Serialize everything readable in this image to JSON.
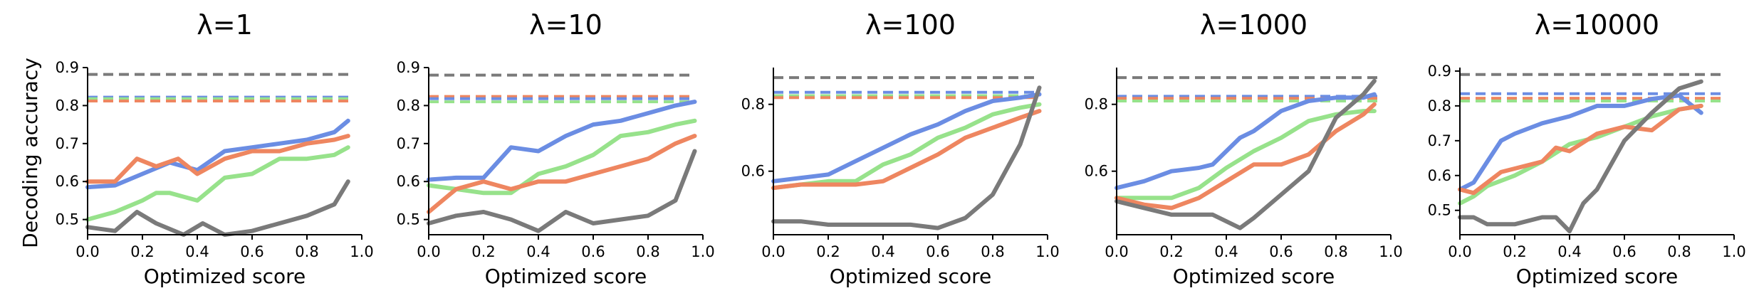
{
  "figure": {
    "ylabel": "Decoding accuracy",
    "xlabel": "Optimized score"
  },
  "colors": {
    "blue": "#6b8de3",
    "green": "#97e28b",
    "orange": "#ee8660",
    "gray": "#7a7a7a"
  },
  "chart_data": [
    {
      "type": "line",
      "title": "λ=1",
      "xlabel": "Optimized score",
      "ylabel": "Decoding accuracy",
      "xlim": [
        0,
        1.0
      ],
      "ylim": [
        0.46,
        0.9
      ],
      "xticks": [
        "0.0",
        "0.2",
        "0.4",
        "0.6",
        "0.8",
        "1.0"
      ],
      "yticks": [
        "0.5",
        "0.6",
        "0.7",
        "0.8",
        "0.9"
      ],
      "baselines": [
        {
          "color": "gray",
          "y": 0.882
        },
        {
          "color": "blue",
          "y": 0.822
        },
        {
          "color": "green",
          "y": 0.818
        },
        {
          "color": "orange",
          "y": 0.812
        }
      ],
      "series": [
        {
          "color": "blue",
          "x": [
            0.0,
            0.1,
            0.2,
            0.3,
            0.4,
            0.5,
            0.6,
            0.7,
            0.8,
            0.9,
            0.95
          ],
          "y": [
            0.585,
            0.59,
            0.62,
            0.65,
            0.63,
            0.68,
            0.69,
            0.7,
            0.71,
            0.73,
            0.76
          ]
        },
        {
          "color": "green",
          "x": [
            0.0,
            0.1,
            0.2,
            0.25,
            0.3,
            0.4,
            0.5,
            0.6,
            0.7,
            0.8,
            0.9,
            0.95
          ],
          "y": [
            0.5,
            0.52,
            0.55,
            0.57,
            0.57,
            0.55,
            0.61,
            0.62,
            0.66,
            0.66,
            0.67,
            0.69
          ]
        },
        {
          "color": "orange",
          "x": [
            0.0,
            0.1,
            0.18,
            0.25,
            0.33,
            0.4,
            0.5,
            0.6,
            0.7,
            0.8,
            0.9,
            0.95
          ],
          "y": [
            0.6,
            0.6,
            0.66,
            0.64,
            0.66,
            0.62,
            0.66,
            0.68,
            0.68,
            0.7,
            0.71,
            0.72
          ]
        },
        {
          "color": "gray",
          "x": [
            0.0,
            0.1,
            0.18,
            0.25,
            0.35,
            0.42,
            0.5,
            0.6,
            0.7,
            0.8,
            0.9,
            0.95
          ],
          "y": [
            0.48,
            0.47,
            0.52,
            0.49,
            0.46,
            0.49,
            0.46,
            0.47,
            0.49,
            0.51,
            0.54,
            0.6
          ]
        }
      ]
    },
    {
      "type": "line",
      "title": "λ=10",
      "xlabel": "Optimized score",
      "ylabel": "",
      "xlim": [
        0,
        1.0
      ],
      "ylim": [
        0.46,
        0.9
      ],
      "xticks": [
        "0.0",
        "0.2",
        "0.4",
        "0.6",
        "0.8",
        "1.0"
      ],
      "yticks": [
        "0.5",
        "0.6",
        "0.7",
        "0.8",
        "0.9"
      ],
      "baselines": [
        {
          "color": "gray",
          "y": 0.88
        },
        {
          "color": "orange",
          "y": 0.824
        },
        {
          "color": "blue",
          "y": 0.818
        },
        {
          "color": "green",
          "y": 0.81
        }
      ],
      "series": [
        {
          "color": "blue",
          "x": [
            0.0,
            0.1,
            0.2,
            0.3,
            0.4,
            0.5,
            0.6,
            0.7,
            0.8,
            0.9,
            0.97
          ],
          "y": [
            0.605,
            0.61,
            0.61,
            0.69,
            0.68,
            0.72,
            0.75,
            0.76,
            0.78,
            0.8,
            0.81
          ]
        },
        {
          "color": "green",
          "x": [
            0.0,
            0.1,
            0.2,
            0.3,
            0.4,
            0.5,
            0.6,
            0.7,
            0.8,
            0.9,
            0.97
          ],
          "y": [
            0.59,
            0.58,
            0.57,
            0.57,
            0.62,
            0.64,
            0.67,
            0.72,
            0.73,
            0.75,
            0.76
          ]
        },
        {
          "color": "orange",
          "x": [
            0.0,
            0.1,
            0.2,
            0.3,
            0.4,
            0.5,
            0.6,
            0.7,
            0.8,
            0.9,
            0.97
          ],
          "y": [
            0.52,
            0.58,
            0.6,
            0.58,
            0.6,
            0.6,
            0.62,
            0.64,
            0.66,
            0.7,
            0.72
          ]
        },
        {
          "color": "gray",
          "x": [
            0.0,
            0.1,
            0.2,
            0.3,
            0.4,
            0.5,
            0.6,
            0.7,
            0.8,
            0.9,
            0.97
          ],
          "y": [
            0.49,
            0.51,
            0.52,
            0.5,
            0.47,
            0.52,
            0.49,
            0.5,
            0.51,
            0.55,
            0.68
          ]
        }
      ]
    },
    {
      "type": "line",
      "title": "λ=100",
      "xlabel": "Optimized score",
      "ylabel": "",
      "xlim": [
        0,
        1.0
      ],
      "ylim": [
        0.41,
        0.91
      ],
      "xticks": [
        "0.0",
        "0.2",
        "0.4",
        "0.6",
        "0.8",
        "1.0"
      ],
      "yticks": [
        "0.6",
        "0.8"
      ],
      "baselines": [
        {
          "color": "gray",
          "y": 0.88
        },
        {
          "color": "blue",
          "y": 0.836
        },
        {
          "color": "green",
          "y": 0.826
        },
        {
          "color": "orange",
          "y": 0.82
        }
      ],
      "series": [
        {
          "color": "blue",
          "x": [
            0.0,
            0.1,
            0.2,
            0.3,
            0.4,
            0.5,
            0.6,
            0.7,
            0.8,
            0.9,
            0.97
          ],
          "y": [
            0.57,
            0.58,
            0.59,
            0.63,
            0.67,
            0.71,
            0.74,
            0.78,
            0.81,
            0.82,
            0.83
          ]
        },
        {
          "color": "green",
          "x": [
            0.0,
            0.1,
            0.2,
            0.3,
            0.4,
            0.5,
            0.6,
            0.7,
            0.8,
            0.9,
            0.97
          ],
          "y": [
            0.55,
            0.56,
            0.57,
            0.57,
            0.62,
            0.65,
            0.7,
            0.73,
            0.77,
            0.79,
            0.8
          ]
        },
        {
          "color": "orange",
          "x": [
            0.0,
            0.1,
            0.2,
            0.3,
            0.4,
            0.5,
            0.6,
            0.7,
            0.8,
            0.9,
            0.97
          ],
          "y": [
            0.55,
            0.56,
            0.56,
            0.56,
            0.57,
            0.61,
            0.65,
            0.7,
            0.73,
            0.76,
            0.78
          ]
        },
        {
          "color": "gray",
          "x": [
            0.0,
            0.1,
            0.2,
            0.3,
            0.4,
            0.5,
            0.6,
            0.7,
            0.8,
            0.9,
            0.97
          ],
          "y": [
            0.45,
            0.45,
            0.44,
            0.44,
            0.44,
            0.44,
            0.43,
            0.46,
            0.53,
            0.68,
            0.85
          ]
        }
      ]
    },
    {
      "type": "line",
      "title": "λ=1000",
      "xlabel": "Optimized score",
      "ylabel": "",
      "xlim": [
        0,
        1.0
      ],
      "ylim": [
        0.41,
        0.91
      ],
      "xticks": [
        "0.0",
        "0.2",
        "0.4",
        "0.6",
        "0.8",
        "1.0"
      ],
      "yticks": [
        "0.6",
        "0.8"
      ],
      "baselines": [
        {
          "color": "gray",
          "y": 0.88
        },
        {
          "color": "blue",
          "y": 0.824
        },
        {
          "color": "orange",
          "y": 0.818
        },
        {
          "color": "green",
          "y": 0.81
        }
      ],
      "series": [
        {
          "color": "blue",
          "x": [
            0.0,
            0.1,
            0.2,
            0.3,
            0.35,
            0.45,
            0.5,
            0.6,
            0.7,
            0.8,
            0.9,
            0.94
          ],
          "y": [
            0.55,
            0.57,
            0.6,
            0.61,
            0.62,
            0.7,
            0.72,
            0.78,
            0.81,
            0.82,
            0.82,
            0.83
          ]
        },
        {
          "color": "green",
          "x": [
            0.0,
            0.1,
            0.2,
            0.3,
            0.4,
            0.5,
            0.6,
            0.7,
            0.8,
            0.9,
            0.94
          ],
          "y": [
            0.52,
            0.52,
            0.52,
            0.55,
            0.61,
            0.66,
            0.7,
            0.75,
            0.77,
            0.78,
            0.78
          ]
        },
        {
          "color": "orange",
          "x": [
            0.0,
            0.1,
            0.2,
            0.3,
            0.4,
            0.5,
            0.6,
            0.7,
            0.8,
            0.9,
            0.94
          ],
          "y": [
            0.52,
            0.5,
            0.49,
            0.52,
            0.57,
            0.62,
            0.62,
            0.65,
            0.72,
            0.77,
            0.8
          ]
        },
        {
          "color": "gray",
          "x": [
            0.0,
            0.1,
            0.2,
            0.3,
            0.35,
            0.45,
            0.5,
            0.6,
            0.7,
            0.8,
            0.9,
            0.94
          ],
          "y": [
            0.51,
            0.49,
            0.47,
            0.47,
            0.47,
            0.43,
            0.46,
            0.53,
            0.6,
            0.76,
            0.83,
            0.87
          ]
        }
      ]
    },
    {
      "type": "line",
      "title": "λ=10000",
      "xlabel": "Optimized score",
      "ylabel": "",
      "xlim": [
        0,
        1.0
      ],
      "ylim": [
        0.43,
        0.91
      ],
      "xticks": [
        "0.0",
        "0.2",
        "0.4",
        "0.6",
        "0.8",
        "1.0"
      ],
      "yticks": [
        "0.5",
        "0.6",
        "0.7",
        "0.8",
        "0.9"
      ],
      "baselines": [
        {
          "color": "gray",
          "y": 0.89
        },
        {
          "color": "blue",
          "y": 0.835
        },
        {
          "color": "orange",
          "y": 0.822
        },
        {
          "color": "green",
          "y": 0.814
        }
      ],
      "series": [
        {
          "color": "blue",
          "x": [
            0.0,
            0.05,
            0.1,
            0.15,
            0.2,
            0.3,
            0.4,
            0.5,
            0.6,
            0.7,
            0.8,
            0.88
          ],
          "y": [
            0.56,
            0.58,
            0.64,
            0.7,
            0.72,
            0.75,
            0.77,
            0.8,
            0.8,
            0.82,
            0.83,
            0.78
          ]
        },
        {
          "color": "green",
          "x": [
            0.0,
            0.05,
            0.1,
            0.2,
            0.3,
            0.4,
            0.5,
            0.6,
            0.7,
            0.8,
            0.88
          ],
          "y": [
            0.52,
            0.54,
            0.57,
            0.6,
            0.64,
            0.69,
            0.71,
            0.74,
            0.77,
            0.79,
            0.8
          ]
        },
        {
          "color": "orange",
          "x": [
            0.0,
            0.05,
            0.1,
            0.15,
            0.2,
            0.3,
            0.35,
            0.4,
            0.5,
            0.6,
            0.7,
            0.8,
            0.88
          ],
          "y": [
            0.56,
            0.55,
            0.58,
            0.61,
            0.62,
            0.64,
            0.68,
            0.67,
            0.72,
            0.74,
            0.73,
            0.79,
            0.8
          ]
        },
        {
          "color": "gray",
          "x": [
            0.0,
            0.05,
            0.1,
            0.2,
            0.3,
            0.35,
            0.4,
            0.45,
            0.5,
            0.6,
            0.7,
            0.8,
            0.88
          ],
          "y": [
            0.48,
            0.48,
            0.46,
            0.46,
            0.48,
            0.48,
            0.44,
            0.52,
            0.56,
            0.7,
            0.78,
            0.85,
            0.87
          ]
        }
      ]
    }
  ]
}
